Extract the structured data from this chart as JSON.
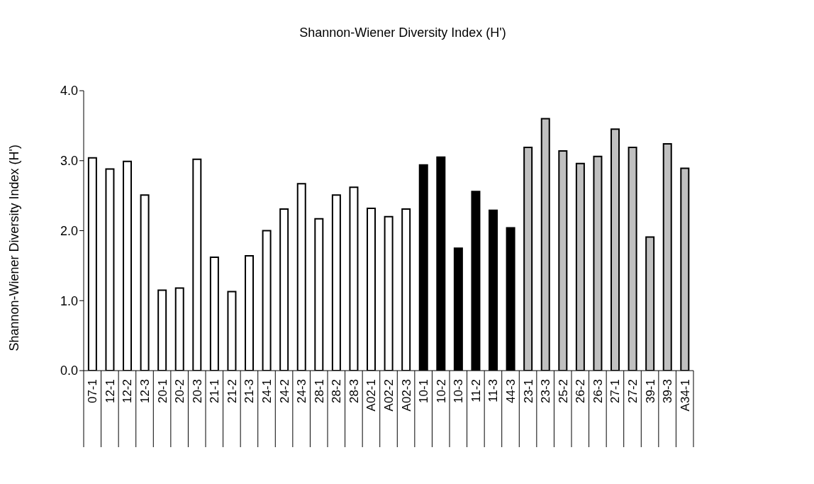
{
  "chart_data": {
    "type": "bar",
    "title": "Shannon-Wiener Diversity Index (H')",
    "ylabel": "Shannon-Wiener Diversity Index (H')",
    "categories": [
      "07-1",
      "12-1",
      "12-2",
      "12-3",
      "20-1",
      "20-2",
      "20-3",
      "21-1",
      "21-2",
      "21-3",
      "24-1",
      "24-2",
      "24-3",
      "28-1",
      "28-2",
      "28-3",
      "A02-1",
      "A02-2",
      "A02-3",
      "10-1",
      "10-2",
      "10-3",
      "11-2",
      "11-3",
      "44-3",
      "23-1",
      "23-3",
      "25-2",
      "26-2",
      "26-3",
      "27-1",
      "27-2",
      "39-1",
      "39-3",
      "A34-1"
    ],
    "values": [
      3.04,
      2.88,
      2.99,
      2.51,
      1.15,
      1.18,
      3.02,
      1.62,
      1.13,
      1.64,
      2.0,
      2.31,
      2.67,
      2.17,
      2.51,
      2.62,
      2.32,
      2.2,
      2.31,
      2.94,
      3.05,
      1.75,
      2.56,
      2.29,
      2.04,
      3.19,
      3.6,
      3.14,
      2.96,
      3.06,
      3.45,
      3.19,
      1.91,
      3.24,
      2.89
    ],
    "colors": [
      "#ffffff",
      "#ffffff",
      "#ffffff",
      "#ffffff",
      "#ffffff",
      "#ffffff",
      "#ffffff",
      "#ffffff",
      "#ffffff",
      "#ffffff",
      "#ffffff",
      "#ffffff",
      "#ffffff",
      "#ffffff",
      "#ffffff",
      "#ffffff",
      "#ffffff",
      "#ffffff",
      "#ffffff",
      "#000000",
      "#000000",
      "#000000",
      "#000000",
      "#000000",
      "#000000",
      "#c0c0c0",
      "#c0c0c0",
      "#c0c0c0",
      "#c0c0c0",
      "#c0c0c0",
      "#c0c0c0",
      "#c0c0c0",
      "#c0c0c0",
      "#c0c0c0",
      "#c0c0c0"
    ],
    "ylim": [
      0,
      4
    ],
    "yticks": [
      {
        "value": 0,
        "label": "0.0"
      },
      {
        "value": 1,
        "label": "1.0"
      },
      {
        "value": 2,
        "label": "2.0"
      },
      {
        "value": 3,
        "label": "3.0"
      },
      {
        "value": 4,
        "label": "4.0"
      }
    ],
    "grid": false,
    "legend": false
  }
}
